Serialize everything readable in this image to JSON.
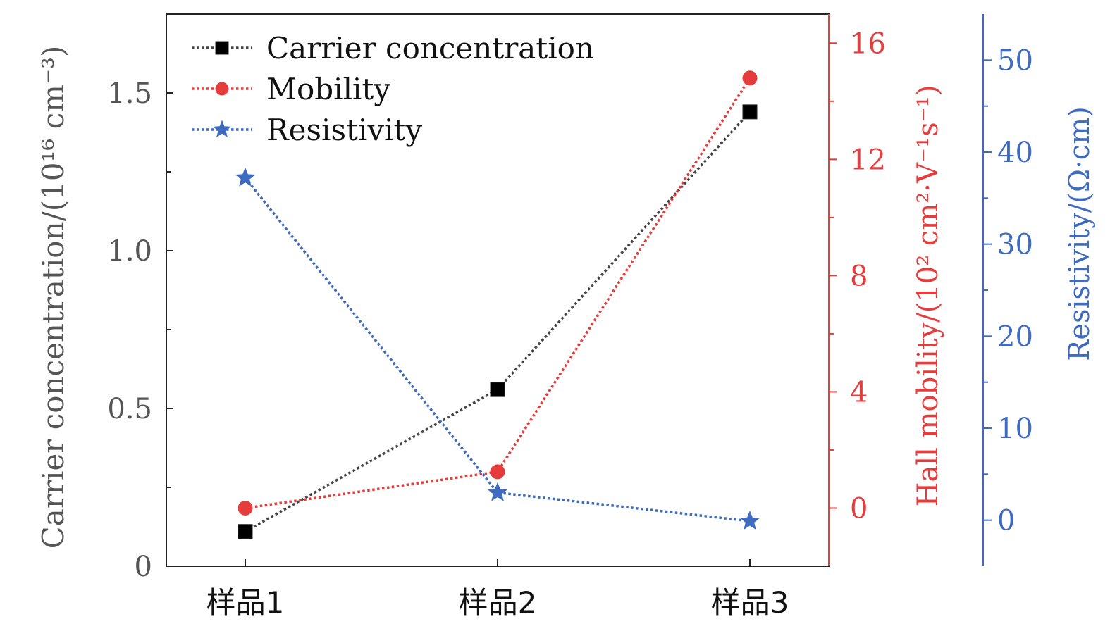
{
  "chart_data": {
    "type": "line",
    "categories": [
      "样品1",
      "样品2",
      "样品3"
    ],
    "series": [
      {
        "name": "Carrier concentration",
        "axis": "left",
        "marker": "square",
        "color": "#000000",
        "line_color": "#444444",
        "values": [
          0.11,
          0.56,
          1.44
        ]
      },
      {
        "name": "Mobility",
        "axis": "right1",
        "marker": "circle",
        "color": "#e53c3c",
        "line_color": "#e53c3c",
        "values": [
          0.0,
          1.25,
          14.8
        ]
      },
      {
        "name": "Resistivity",
        "axis": "right2",
        "marker": "star",
        "color": "#3e6bbf",
        "line_color": "#3e6bbf",
        "values": [
          37.2,
          3.0,
          -0.1
        ]
      }
    ],
    "axes": {
      "left": {
        "label": "Carrier concentration/(10¹⁶ cm⁻³)",
        "range": [
          0,
          1.75
        ],
        "ticks": [
          0,
          0.5,
          1.0,
          1.5
        ],
        "tick_labels": [
          "0",
          "0.5",
          "1.0",
          "1.5"
        ],
        "minor_ticks": [
          0.25,
          0.75,
          1.25
        ],
        "color": "#555555"
      },
      "right1": {
        "label": "Hall mobility/(10² cm²·V⁻¹s⁻¹)",
        "range": [
          -2,
          17
        ],
        "ticks": [
          0,
          4,
          8,
          12,
          16
        ],
        "tick_labels": [
          "0",
          "4",
          "8",
          "12",
          "16"
        ],
        "minor_ticks": [
          2,
          6,
          10,
          14
        ],
        "color": "#e53c3c"
      },
      "right2": {
        "label": "Resistivity/(Ω·cm)",
        "range": [
          -5,
          55
        ],
        "ticks": [
          0,
          10,
          20,
          30,
          40,
          50
        ],
        "tick_labels": [
          "0",
          "10",
          "20",
          "30",
          "40",
          "50"
        ],
        "minor_ticks": [
          5,
          15,
          25,
          35,
          45
        ],
        "color": "#3e6bbf"
      }
    },
    "legend": {
      "position": "top-left",
      "entries": [
        "Carrier concentration",
        "Mobility",
        "Resistivity"
      ]
    },
    "grid": false
  }
}
